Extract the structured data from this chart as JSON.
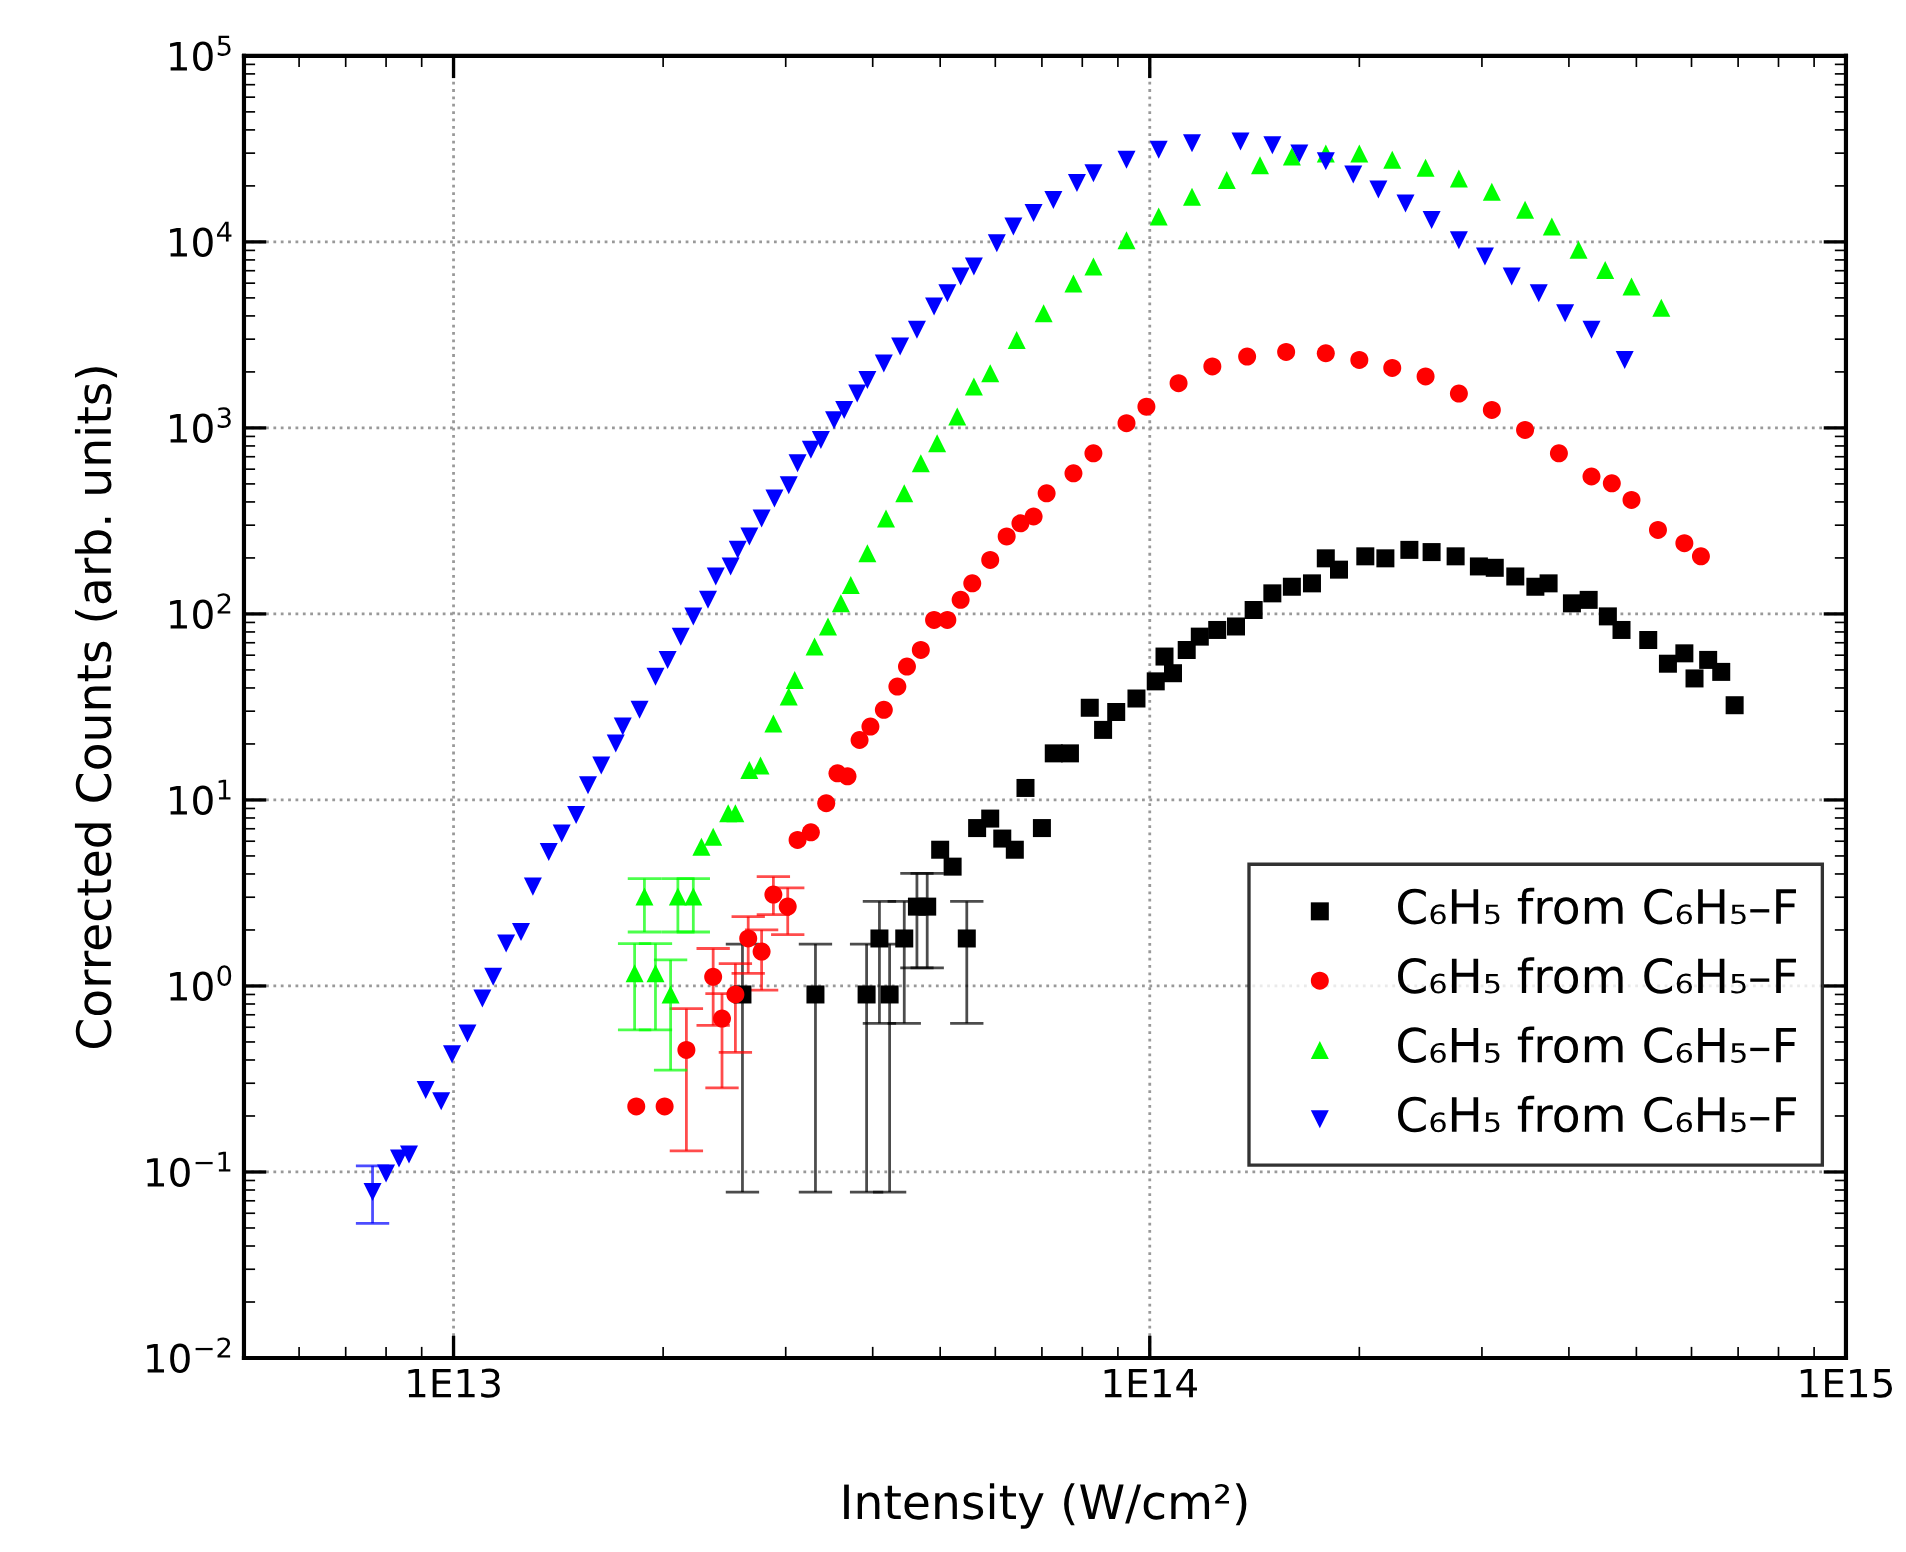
{
  "chart_data": {
    "type": "scatter",
    "xlabel": "Intensity (W/cm²)",
    "ylabel": "Corrected Counts (arb. units)",
    "log": "xy",
    "grid": true,
    "legend": "bottom right",
    "xlim": [
      5000000000000.0,
      1000000000000000.0
    ],
    "xticks": [
      {
        "value": 10000000000000.0,
        "label": "1E13"
      },
      {
        "value": 100000000000000.0,
        "label": "1E14"
      },
      {
        "value": 1000000000000000.0,
        "label": "1E15"
      }
    ],
    "ylim": [
      0.01,
      100000
    ],
    "yticks": [
      {
        "value": 0.01,
        "label": "10$^{−2}$"
      },
      {
        "value": 0.1,
        "label": "10$^{−1}$"
      },
      {
        "value": 1,
        "label": "10$^{0}$"
      },
      {
        "value": 10,
        "label": "10$^{1}$"
      },
      {
        "value": 100,
        "label": "10$^{2}$"
      },
      {
        "value": 1000,
        "label": "10$^{3}$"
      },
      {
        "value": 10000,
        "label": "10$^{4}$"
      },
      {
        "value": 100000,
        "label": "10$^{5}$"
      }
    ],
    "series": [
      {
        "name": "C₆H₅ from C₆H₅–F",
        "color": "#000000",
        "marker": "square",
        "x": [
          26000000000000.0,
          33100000000000.0,
          39200000000000.0,
          40900000000000.0,
          42300000000000.0,
          44400000000000.0,
          46300000000000.0,
          47900000000000.0,
          50000000000000.0,
          52100000000000.0,
          54600000000000.0,
          56500000000000.0,
          59000000000000.0,
          61400000000000.0,
          64000000000000.0,
          66300000000000.0,
          70000000000000.0,
          72800000000000.0,
          76800000000000.0,
          82000000000000.0,
          85700000000000.0,
          89500000000000.0,
          95700000000000.0,
          102000000000000.0,
          105000000000000.0,
          108000000000000.0,
          113000000000000.0,
          118000000000000.0,
          125000000000000.0,
          133000000000000.0,
          141000000000000.0,
          150000000000000.0,
          160000000000000.0,
          171000000000000.0,
          179000000000000.0,
          187000000000000.0,
          204000000000000.0,
          218000000000000.0,
          236000000000000.0,
          254000000000000.0,
          275000000000000.0,
          297000000000000.0,
          313000000000000.0,
          335000000000000.0,
          358000000000000.0,
          374000000000000.0,
          404000000000000.0,
          427000000000000.0,
          455000000000000.0,
          476000000000000.0,
          520000000000000.0,
          555000000000000.0,
          586000000000000.0,
          606000000000000.0,
          634000000000000.0,
          662000000000000.0,
          692000000000000.0
        ],
        "values": [
          0.9,
          0.9,
          0.9,
          1.8,
          0.9,
          1.8,
          2.67,
          2.67,
          5.4,
          4.38,
          1.8,
          7.06,
          7.94,
          6.2,
          5.4,
          11.6,
          7.06,
          17.8,
          17.8,
          31.3,
          23.8,
          29.7,
          35.1,
          43.4,
          59,
          48,
          64,
          75.5,
          82,
          85.6,
          105,
          129,
          140,
          146,
          199,
          173,
          204,
          199,
          221,
          215,
          204,
          180,
          177,
          159,
          140,
          146,
          114,
          119,
          97,
          82,
          72.4,
          54,
          61.4,
          45,
          56.6,
          48.8,
          32.3
        ],
        "errors": [
          [
            0.078,
            1.68
          ],
          [
            0.078,
            1.68
          ],
          [
            0.078,
            1.68
          ],
          [
            0.63,
            2.85
          ],
          [
            0.078,
            1.68
          ],
          [
            0.63,
            2.85
          ],
          [
            1.25,
            4.03
          ],
          [
            1.25,
            4.03
          ],
          null,
          null,
          [
            0.63,
            2.85
          ],
          null,
          null,
          null,
          null,
          null,
          null,
          null,
          null,
          null,
          null,
          null,
          null,
          null,
          null,
          null,
          null,
          null,
          null,
          null,
          null,
          null,
          null,
          null,
          null,
          null,
          null,
          null,
          null,
          null,
          null,
          null,
          null,
          null,
          null,
          null,
          null,
          null,
          null,
          null,
          null,
          null,
          null,
          null,
          null,
          null,
          null
        ]
      },
      {
        "name": "C₆H₅ from C₆H₅–F",
        "color": "#ff0000",
        "marker": "circle",
        "x": [
          18300000000000.0,
          20100000000000.0,
          21600000000000.0,
          23600000000000.0,
          24300000000000.0,
          25400000000000.0,
          26500000000000.0,
          27700000000000.0,
          28800000000000.0,
          30200000000000.0,
          31200000000000.0,
          32600000000000.0,
          34300000000000.0,
          35600000000000.0,
          36800000000000.0,
          38300000000000.0,
          39700000000000.0,
          41500000000000.0,
          43400000000000.0,
          44800000000000.0,
          46900000000000.0,
          49000000000000.0,
          51200000000000.0,
          53500000000000.0,
          55600000000000.0,
          59000000000000.0,
          62300000000000.0,
          65200000000000.0,
          68100000000000.0,
          71100000000000.0,
          77700000000000.0,
          83000000000000.0,
          92600000000000.0,
          98900000000000.0,
          110000000000000.0,
          123000000000000.0,
          138000000000000.0,
          157000000000000.0,
          179000000000000.0,
          200000000000000.0,
          223000000000000.0,
          249000000000000.0,
          278000000000000.0,
          310000000000000.0,
          346000000000000.0,
          387000000000000.0,
          431000000000000.0,
          461000000000000.0,
          492000000000000.0,
          537000000000000.0,
          586000000000000.0,
          619000000000000.0
        ],
        "values": [
          0.225,
          0.225,
          0.453,
          1.12,
          0.668,
          0.9,
          1.8,
          1.53,
          3.1,
          2.67,
          6.1,
          6.7,
          9.6,
          13.9,
          13.4,
          21.0,
          24.8,
          30.5,
          40.7,
          52.1,
          64,
          92.9,
          92.9,
          119,
          146,
          195,
          261,
          307,
          334,
          445,
          570,
          730,
          1060,
          1300,
          1740,
          2140,
          2420,
          2560,
          2520,
          2320,
          2100,
          1890,
          1530,
          1250,
          975,
          730,
          548,
          504,
          410,
          283,
          240,
          204
        ],
        "errors": [
          null,
          null,
          [
            0.13,
            0.755
          ],
          [
            0.614,
            1.59
          ],
          [
            0.283,
            0.91
          ],
          [
            0.44,
            1.32
          ],
          [
            1.17,
            2.36
          ],
          [
            0.95,
            2.0
          ],
          [
            2.42,
            3.87
          ],
          [
            1.89,
            3.37
          ],
          null,
          null,
          null,
          null,
          null,
          null,
          null,
          null,
          null,
          null,
          null,
          null,
          null,
          null,
          null,
          null,
          null,
          null,
          null,
          null,
          null,
          null,
          null,
          null,
          null,
          null,
          null,
          null,
          null,
          null,
          null,
          null,
          null,
          null,
          null,
          null,
          null,
          null,
          null,
          null,
          null,
          null
        ]
      },
      {
        "name": "C₆H₅ from C₆H₅–F",
        "color": "#00ff00",
        "marker": "triangle",
        "x": [
          18200000000000.0,
          18800000000000.0,
          19500000000000.0,
          20500000000000.0,
          21000000000000.0,
          22100000000000.0,
          22700000000000.0,
          23600000000000.0,
          24800000000000.0,
          25400000000000.0,
          26600000000000.0,
          27600000000000.0,
          28800000000000.0,
          30300000000000.0,
          30900000000000.0,
          33000000000000.0,
          34500000000000.0,
          36000000000000.0,
          37200000000000.0,
          39300000000000.0,
          41800000000000.0,
          44400000000000.0,
          46900000000000.0,
          49500000000000.0,
          52900000000000.0,
          55900000000000.0,
          59000000000000.0,
          64400000000000.0,
          70400000000000.0,
          77700000000000.0,
          83000000000000.0,
          92600000000000.0,
          103000000000000.0,
          115000000000000.0,
          129000000000000.0,
          144000000000000.0,
          160000000000000.0,
          179000000000000.0,
          200000000000000.0,
          223000000000000.0,
          249000000000000.0,
          278000000000000.0,
          310000000000000.0,
          346000000000000.0,
          378000000000000.0,
          413000000000000.0,
          451000000000000.0,
          492000000000000.0,
          543000000000000.0
        ],
        "values": [
          1.17,
          3.03,
          1.17,
          0.9,
          3.03,
          3.03,
          5.61,
          6.35,
          8.47,
          8.47,
          14.5,
          15.3,
          25.8,
          36,
          44.2,
          66.8,
          85.6,
          114,
          143,
          212,
          326,
          445,
          645,
          827,
          1150,
          1670,
          1970,
          2970,
          4130,
          5980,
          7380,
          10200,
          13700,
          17500,
          21500,
          25800,
          28800,
          29900,
          29900,
          27600,
          25000,
          21900,
          18600,
          14900,
          12100,
          9060,
          7060,
          5760,
          4420
        ],
        "errors": [
          [
            0.58,
            1.69
          ],
          [
            1.95,
            3.78
          ],
          [
            0.58,
            1.69
          ],
          [
            0.353,
            1.38
          ],
          [
            1.95,
            3.78
          ],
          [
            1.95,
            3.78
          ],
          null,
          null,
          null,
          null,
          null,
          null,
          null,
          null,
          null,
          null,
          null,
          null,
          null,
          null,
          null,
          null,
          null,
          null,
          null,
          null,
          null,
          null,
          null,
          null,
          null,
          null,
          null,
          null,
          null,
          null,
          null,
          null,
          null,
          null,
          null,
          null,
          null,
          null,
          null,
          null,
          null,
          null,
          null
        ]
      },
      {
        "name": "C₆H₅ from C₆H₅–F",
        "color": "#0000ff",
        "marker": "triangle_down",
        "x": [
          7650000000000.0,
          8000000000000.0,
          8350000000000.0,
          8630000000000.0,
          9120000000000.0,
          9600000000000.0,
          9950000000000.0,
          10470000000000.0,
          11000000000000.0,
          11400000000000.0,
          11900000000000.0,
          12500000000000.0,
          13000000000000.0,
          13700000000000.0,
          14300000000000.0,
          15000000000000.0,
          15600000000000.0,
          16300000000000.0,
          17100000000000.0,
          17500000000000.0,
          18500000000000.0,
          19500000000000.0,
          20300000000000.0,
          21200000000000.0,
          22100000000000.0,
          23200000000000.0,
          23800000000000.0,
          25000000000000.0,
          25600000000000.0,
          26600000000000.0,
          27700000000000.0,
          28900000000000.0,
          30300000000000.0,
          31200000000000.0,
          32600000000000.0,
          33700000000000.0,
          35200000000000.0,
          36400000000000.0,
          38000000000000.0,
          39300000000000.0,
          41500000000000.0,
          43800000000000.0,
          46300000000000.0,
          49000000000000.0,
          51200000000000.0,
          53500000000000.0,
          55900000000000.0,
          60300000000000.0,
          63700000000000.0,
          68100000000000.0,
          72700000000000.0,
          78600000000000.0,
          83000000000000.0,
          92600000000000.0,
          103000000000000.0,
          115000000000000.0,
          135000000000000.0,
          150000000000000.0,
          164000000000000.0,
          179000000000000.0,
          196000000000000.0,
          213000000000000.0,
          233000000000000.0,
          254000000000000.0,
          278000000000000.0,
          303000000000000.0,
          331000000000000.0,
          362000000000000.0,
          395000000000000.0,
          431000000000000.0,
          481000000000000.0
        ],
        "values": [
          0.078,
          0.098,
          0.118,
          0.124,
          0.276,
          0.24,
          0.43,
          0.556,
          0.855,
          1.12,
          1.69,
          1.95,
          3.42,
          5.25,
          6.6,
          8.3,
          12.0,
          15.3,
          20.1,
          24.8,
          30.5,
          46,
          56.6,
          75.5,
          97,
          119,
          159,
          180,
          221,
          261,
          326,
          417,
          491,
          645,
          762,
          861,
          1100,
          1250,
          1530,
          1810,
          2220,
          2740,
          3370,
          4500,
          5300,
          6520,
          7380,
          9820,
          12100,
          14300,
          16800,
          20700,
          23400,
          27600,
          31300,
          33900,
          34700,
          33100,
          29900,
          27100,
          23000,
          19100,
          16100,
          13100,
          10200,
          8340,
          6520,
          5300,
          4130,
          3370,
          2320
        ],
        "errors": [
          [
            0.053,
            0.108
          ],
          null,
          null,
          null,
          null,
          null,
          null,
          null,
          null,
          null,
          null,
          null,
          null,
          null,
          null,
          null,
          null,
          null,
          null,
          null,
          null,
          null,
          null,
          null,
          null,
          null,
          null,
          null,
          null,
          null,
          null,
          null,
          null,
          null,
          null,
          null,
          null,
          null,
          null,
          null,
          null,
          null,
          null,
          null,
          null,
          null,
          null,
          null,
          null,
          null,
          null,
          null,
          null,
          null,
          null,
          null,
          null,
          null,
          null,
          null,
          null,
          null,
          null,
          null,
          null,
          null,
          null,
          null,
          null,
          null,
          null
        ]
      }
    ]
  }
}
